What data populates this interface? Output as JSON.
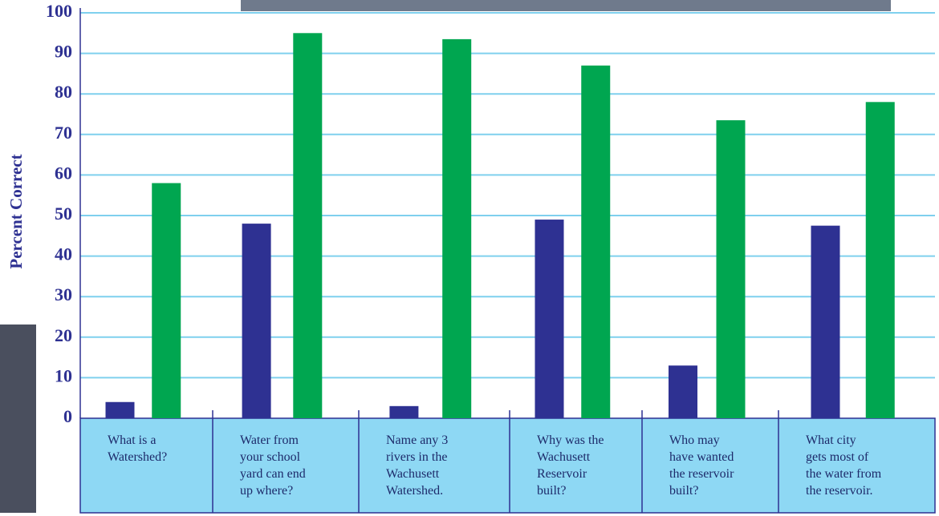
{
  "chart_data": {
    "type": "bar",
    "y_label": "Percent Correct",
    "categories": [
      [
        "What is a",
        "Watershed?"
      ],
      [
        "Water from",
        "your school",
        "yard can end",
        "up where?"
      ],
      [
        "Name any 3",
        "rivers in the",
        "Wachusett",
        "Watershed."
      ],
      [
        "Why was the",
        "Wachusett",
        "Reservoir",
        "built?"
      ],
      [
        "Who may",
        "have wanted",
        "the reservoir",
        "built?"
      ],
      [
        "What city",
        "gets most of",
        "the water from",
        "the reservoir."
      ]
    ],
    "series": [
      {
        "color": "#2e3192",
        "values": [
          4,
          48,
          3,
          49,
          13,
          47.5
        ]
      },
      {
        "color": "#00a650",
        "values": [
          58,
          95,
          93.5,
          87,
          73.5,
          78
        ]
      }
    ],
    "ylim": [
      0,
      100
    ],
    "yticks": [
      0,
      10,
      20,
      30,
      40,
      50,
      60,
      70,
      80,
      90,
      100
    ],
    "grid": true
  }
}
